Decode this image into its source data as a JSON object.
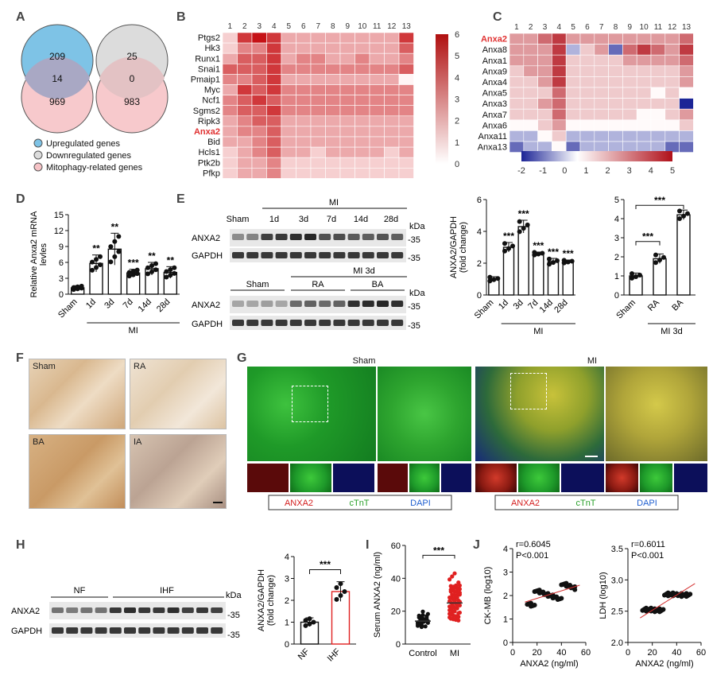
{
  "panel_labels": [
    "A",
    "B",
    "C",
    "D",
    "E",
    "F",
    "G",
    "H",
    "I",
    "J"
  ],
  "venn": {
    "left": {
      "top": "209",
      "mid": "14",
      "bottom": "969"
    },
    "right": {
      "top": "25",
      "mid": "0",
      "bottom": "983"
    },
    "legend": [
      "Upregulated genes",
      "Downregulated genes",
      "Mitophagy-related genes"
    ],
    "colors": {
      "up": "#7ec3e6",
      "down": "#dcdcdc",
      "mito": "#f6c3c6"
    }
  },
  "heatmap_b": {
    "columns": [
      "1",
      "2",
      "3",
      "4",
      "5",
      "6",
      "7",
      "8",
      "9",
      "10",
      "11",
      "12",
      "13"
    ],
    "rows": [
      "Ptgs2",
      "Hk3",
      "Runx1",
      "Snai1",
      "Pmaip1",
      "Myc",
      "Ncf1",
      "Sgms2",
      "Ripk3",
      "Anxa2",
      "Bid",
      "Hcls1",
      "Ptk2b",
      "Pfkp"
    ],
    "highlight": "Anxa2",
    "scale": [
      "6",
      "5",
      "4",
      "3",
      "2",
      "1",
      "0"
    ],
    "values": [
      [
        1,
        5,
        6,
        5,
        2,
        2,
        2,
        2,
        2,
        2,
        2,
        2,
        5
      ],
      [
        1,
        3,
        3,
        5,
        2,
        2,
        2,
        2,
        2,
        2,
        2,
        2,
        4
      ],
      [
        2,
        4,
        4,
        5,
        2,
        3,
        3,
        2,
        2,
        3,
        2,
        2,
        3
      ],
      [
        4,
        4,
        4,
        5,
        3,
        3,
        3,
        3,
        3,
        3,
        3,
        3,
        4
      ],
      [
        3,
        3,
        4,
        5,
        2,
        2,
        2,
        2,
        2,
        2,
        2,
        2,
        0
      ],
      [
        2,
        5,
        4,
        5,
        3,
        3,
        3,
        3,
        3,
        3,
        3,
        3,
        3
      ],
      [
        3,
        4,
        5,
        4,
        3,
        3,
        3,
        3,
        3,
        3,
        3,
        3,
        3
      ],
      [
        3,
        4,
        4,
        5,
        3,
        3,
        3,
        3,
        3,
        3,
        3,
        3,
        3
      ],
      [
        2,
        3,
        4,
        4,
        2,
        2,
        2,
        2,
        2,
        2,
        2,
        2,
        2
      ],
      [
        2,
        3,
        3,
        4,
        2,
        2,
        2,
        2,
        2,
        2,
        2,
        2,
        2
      ],
      [
        2,
        2,
        3,
        4,
        2,
        2,
        2,
        2,
        2,
        2,
        2,
        2,
        2
      ],
      [
        1,
        2,
        3,
        4,
        2,
        2,
        1,
        2,
        2,
        2,
        2,
        1,
        2
      ],
      [
        1,
        2,
        2,
        3,
        1,
        1,
        1,
        1,
        1,
        1,
        1,
        1,
        1
      ],
      [
        1,
        2,
        2,
        3,
        1,
        1,
        1,
        1,
        1,
        1,
        1,
        1,
        1
      ]
    ]
  },
  "heatmap_c": {
    "columns": [
      "1",
      "2",
      "3",
      "4",
      "5",
      "6",
      "7",
      "8",
      "9",
      "10",
      "11",
      "12",
      "13"
    ],
    "rows": [
      "Anxa2",
      "Anxa8",
      "Anxa1",
      "Anxa9",
      "Anxa4",
      "Anxa5",
      "Anxa3",
      "Anxa7",
      "Anxa6",
      "Anxa11",
      "Anxa13"
    ],
    "highlight": "Anxa2",
    "scale": [
      "-2",
      "-1",
      "0",
      "1",
      "2",
      "3",
      "4",
      "5"
    ],
    "values": [
      [
        2,
        2,
        3,
        4,
        2,
        2,
        2,
        2,
        2,
        2,
        2,
        2,
        3
      ],
      [
        2,
        2,
        2,
        4,
        -1,
        1,
        2,
        -2,
        3,
        4,
        3,
        2,
        4
      ],
      [
        2,
        2,
        2,
        4,
        1,
        1,
        1,
        1,
        2,
        2,
        2,
        2,
        3
      ],
      [
        1,
        2,
        2,
        4,
        1,
        1,
        1,
        1,
        1,
        1,
        1,
        1,
        2
      ],
      [
        1,
        1,
        2,
        4,
        1,
        1,
        1,
        1,
        1,
        1,
        1,
        1,
        2
      ],
      [
        1,
        1,
        1,
        3,
        1,
        1,
        1,
        1,
        1,
        1,
        0,
        1,
        0
      ],
      [
        1,
        1,
        2,
        3,
        1,
        1,
        1,
        1,
        1,
        1,
        1,
        1,
        -3
      ],
      [
        1,
        1,
        1,
        3,
        1,
        1,
        1,
        1,
        1,
        0,
        0,
        1,
        2
      ],
      [
        0,
        0,
        1,
        2,
        0,
        0,
        0,
        0,
        0,
        0,
        0,
        0,
        1
      ],
      [
        -1,
        -1,
        0,
        1,
        -1,
        -1,
        -1,
        -1,
        -1,
        -1,
        -1,
        -1,
        -1
      ],
      [
        -2,
        -1,
        -1,
        0,
        -2,
        -1,
        -1,
        -1,
        -1,
        -1,
        -1,
        -2,
        -2
      ]
    ]
  },
  "blots": {
    "mi_header": "MI",
    "time_lanes": [
      "Sham",
      "1d",
      "3d",
      "7d",
      "14d",
      "28d"
    ],
    "kda": "kDa",
    "marker": "-35",
    "proteins": [
      "ANXA2",
      "GAPDH"
    ],
    "mi3d_header": "MI 3d",
    "group_lanes": [
      "Sham",
      "RA",
      "BA"
    ],
    "h_groups": [
      "NF",
      "IHF"
    ]
  },
  "chart_data": [
    {
      "panel": "D",
      "type": "bar",
      "categories": [
        "Sham",
        "1d",
        "3d",
        "7d",
        "14d",
        "28d"
      ],
      "values": [
        1.2,
        5.8,
        8.5,
        4.0,
        4.8,
        4.1
      ],
      "errors": [
        0.4,
        1.6,
        3.0,
        0.7,
        1.2,
        1.1
      ],
      "significance": [
        "",
        "**",
        "**",
        "***",
        "**",
        "**"
      ],
      "group_label": "MI",
      "ylabel": "Relative Anxa2 mRNA levles",
      "yticks": [
        "0",
        "3",
        "6",
        "9",
        "12",
        "15"
      ],
      "ylim": [
        0,
        15
      ]
    },
    {
      "panel": "E-time",
      "type": "bar",
      "categories": [
        "Sham",
        "1d",
        "3d",
        "7d",
        "14d",
        "28d"
      ],
      "values": [
        1.0,
        3.0,
        4.3,
        2.6,
        2.1,
        2.1
      ],
      "errors": [
        0.15,
        0.3,
        0.4,
        0.1,
        0.2,
        0.1
      ],
      "significance": [
        "",
        "***",
        "***",
        "***",
        "***",
        "***"
      ],
      "group_label": "MI",
      "ylabel": "ANXA2/GAPDH (fold change)",
      "yticks": [
        "0",
        "2",
        "4",
        "6"
      ],
      "ylim": [
        0,
        6
      ]
    },
    {
      "panel": "E-group",
      "type": "bar",
      "categories": [
        "Sham",
        "RA",
        "BA"
      ],
      "values": [
        1.0,
        1.9,
        4.2
      ],
      "errors": [
        0.15,
        0.25,
        0.25
      ],
      "comparisons": [
        "***",
        "***"
      ],
      "group_label": "MI 3d",
      "yticks": [
        "0",
        "1",
        "2",
        "3",
        "4",
        "5"
      ],
      "ylim": [
        0,
        5
      ]
    },
    {
      "panel": "H",
      "type": "bar",
      "categories": [
        "NF",
        "IHF"
      ],
      "values": [
        1.0,
        2.4
      ],
      "errors": [
        0.2,
        0.45
      ],
      "comparison": "***",
      "ylabel": "ANXA2/GAPDH (fold change)",
      "yticks": [
        "0",
        "1",
        "2",
        "3",
        "4"
      ],
      "ylim": [
        0,
        4
      ]
    },
    {
      "panel": "I",
      "type": "scatter",
      "categories": [
        "Control",
        "MI"
      ],
      "means": [
        14,
        25
      ],
      "comparison": "***",
      "ylabel": "Serum ANXA2 (ng/ml)",
      "yticks": [
        "0",
        "20",
        "40",
        "60"
      ],
      "ylim": [
        0,
        60
      ]
    },
    {
      "panel": "J-CKMB",
      "type": "scatter",
      "annotation": [
        "r=0.6045",
        "P<0.001"
      ],
      "xlabel": "ANXA2 (ng/ml)",
      "ylabel": "CK-MB (log10)",
      "xticks": [
        "0",
        "20",
        "40",
        "60"
      ],
      "yticks": [
        "0",
        "1",
        "2",
        "3",
        "4"
      ],
      "xlim": [
        0,
        60
      ],
      "ylim": [
        0,
        4
      ],
      "fit": {
        "slope": 0.016,
        "intercept": 1.56
      }
    },
    {
      "panel": "J-LDH",
      "type": "scatter",
      "annotation": [
        "r=0.6011",
        "P<0.001"
      ],
      "xlabel": "ANXA2 (ng/ml)",
      "ylabel": "LDH (log10)",
      "xticks": [
        "0",
        "20",
        "40",
        "60"
      ],
      "yticks": [
        "2.0",
        "2.5",
        "3.0",
        "3.5"
      ],
      "xlim": [
        0,
        60
      ],
      "ylim": [
        2.0,
        3.5
      ],
      "fit": {
        "slope": 0.0122,
        "intercept": 2.27
      }
    }
  ],
  "panel_f": {
    "labels": [
      "Sham",
      "RA",
      "BA",
      "IA"
    ]
  },
  "panel_g": {
    "titles": [
      "Sham",
      "MI"
    ],
    "legend": [
      "ANXA2",
      "cTnT",
      "DAPI"
    ],
    "legend_colors": [
      "#d42020",
      "#28a028",
      "#1f5fd0"
    ]
  },
  "colors": {
    "highlight": "#e03030",
    "bar_red": "#e02020",
    "axis": "#111111"
  }
}
